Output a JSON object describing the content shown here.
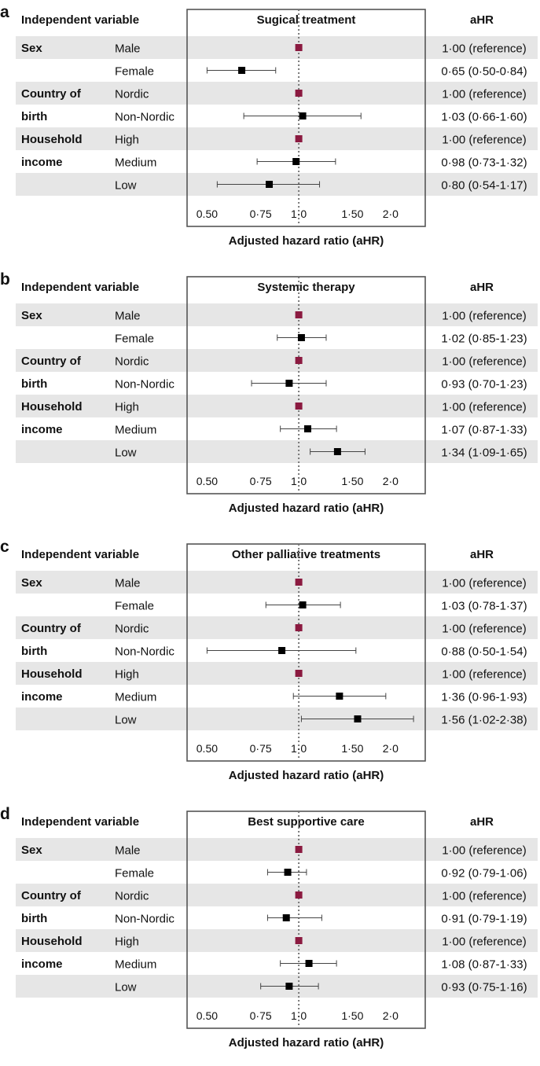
{
  "header": {
    "independent_label": "Independent variable",
    "ahr_label": "aHR",
    "xlabel": "Adjusted hazard ratio (aHR)"
  },
  "groups": [
    {
      "label_line1": "Sex",
      "label_line2": ""
    },
    {
      "label_line1": "Country of",
      "label_line2": "birth"
    },
    {
      "label_line1": "Household",
      "label_line2": "income"
    }
  ],
  "rows": [
    "Male",
    "Female",
    "Nordic",
    "Non-Nordic",
    "High",
    "Medium",
    "Low"
  ],
  "colors": {
    "reference_marker": "#8b1a40",
    "estimate_marker": "#000000",
    "row_band": "#e6e6e6",
    "ref_line": "#777777"
  },
  "chart_data": [
    {
      "type": "forest",
      "panel_letter": "a",
      "title": "Sugical treatment",
      "x_scale": "log",
      "xlim": [
        0.43,
        2.6
      ],
      "ticks": [
        {
          "value": 0.5,
          "label": "0.50"
        },
        {
          "value": 0.75,
          "label": "0·75"
        },
        {
          "value": 1.0,
          "label": "1·0"
        },
        {
          "value": 1.5,
          "label": "1·50"
        },
        {
          "value": 2.0,
          "label": "2·0"
        }
      ],
      "reference_line": 1.0,
      "points": [
        {
          "row": "Male",
          "hr": 1.0,
          "lo": null,
          "hi": null,
          "reference": true,
          "text": "1·00 (reference)"
        },
        {
          "row": "Female",
          "hr": 0.65,
          "lo": 0.5,
          "hi": 0.84,
          "reference": false,
          "text": "0·65 (0·50-0·84)"
        },
        {
          "row": "Nordic",
          "hr": 1.0,
          "lo": null,
          "hi": null,
          "reference": true,
          "text": "1·00 (reference)"
        },
        {
          "row": "Non-Nordic",
          "hr": 1.03,
          "lo": 0.66,
          "hi": 1.6,
          "reference": false,
          "text": "1·03 (0·66-1·60)"
        },
        {
          "row": "High",
          "hr": 1.0,
          "lo": null,
          "hi": null,
          "reference": true,
          "text": "1·00 (reference)"
        },
        {
          "row": "Medium",
          "hr": 0.98,
          "lo": 0.73,
          "hi": 1.32,
          "reference": false,
          "text": "0·98 (0·73-1·32)"
        },
        {
          "row": "Low",
          "hr": 0.8,
          "lo": 0.54,
          "hi": 1.17,
          "reference": false,
          "text": "0·80 (0·54-1·17)"
        }
      ]
    },
    {
      "type": "forest",
      "panel_letter": "b",
      "title": "Systemic therapy",
      "x_scale": "log",
      "xlim": [
        0.43,
        2.6
      ],
      "ticks": [
        {
          "value": 0.5,
          "label": "0.50"
        },
        {
          "value": 0.75,
          "label": "0·75"
        },
        {
          "value": 1.0,
          "label": "1·0"
        },
        {
          "value": 1.5,
          "label": "1·50"
        },
        {
          "value": 2.0,
          "label": "2·0"
        }
      ],
      "reference_line": 1.0,
      "points": [
        {
          "row": "Male",
          "hr": 1.0,
          "lo": null,
          "hi": null,
          "reference": true,
          "text": "1·00 (reference)"
        },
        {
          "row": "Female",
          "hr": 1.02,
          "lo": 0.85,
          "hi": 1.23,
          "reference": false,
          "text": "1·02 (0·85-1·23)"
        },
        {
          "row": "Nordic",
          "hr": 1.0,
          "lo": null,
          "hi": null,
          "reference": true,
          "text": "1·00 (reference)"
        },
        {
          "row": "Non-Nordic",
          "hr": 0.93,
          "lo": 0.7,
          "hi": 1.23,
          "reference": false,
          "text": "0·93 (0·70-1·23)"
        },
        {
          "row": "High",
          "hr": 1.0,
          "lo": null,
          "hi": null,
          "reference": true,
          "text": "1·00 (reference)"
        },
        {
          "row": "Medium",
          "hr": 1.07,
          "lo": 0.87,
          "hi": 1.33,
          "reference": false,
          "text": "1·07 (0·87-1·33)"
        },
        {
          "row": "Low",
          "hr": 1.34,
          "lo": 1.09,
          "hi": 1.65,
          "reference": false,
          "text": "1·34 (1·09-1·65)"
        }
      ]
    },
    {
      "type": "forest",
      "panel_letter": "c",
      "title": "Other palliative treatments",
      "x_scale": "log",
      "xlim": [
        0.43,
        2.6
      ],
      "ticks": [
        {
          "value": 0.5,
          "label": "0.50"
        },
        {
          "value": 0.75,
          "label": "0·75"
        },
        {
          "value": 1.0,
          "label": "1·0"
        },
        {
          "value": 1.5,
          "label": "1·50"
        },
        {
          "value": 2.0,
          "label": "2·0"
        }
      ],
      "reference_line": 1.0,
      "points": [
        {
          "row": "Male",
          "hr": 1.0,
          "lo": null,
          "hi": null,
          "reference": true,
          "text": "1·00 (reference)"
        },
        {
          "row": "Female",
          "hr": 1.03,
          "lo": 0.78,
          "hi": 1.37,
          "reference": false,
          "text": "1·03 (0·78-1·37)"
        },
        {
          "row": "Nordic",
          "hr": 1.0,
          "lo": null,
          "hi": null,
          "reference": true,
          "text": "1·00 (reference)"
        },
        {
          "row": "Non-Nordic",
          "hr": 0.88,
          "lo": 0.5,
          "hi": 1.54,
          "reference": false,
          "text": "0·88 (0·50-1·54)"
        },
        {
          "row": "High",
          "hr": 1.0,
          "lo": null,
          "hi": null,
          "reference": true,
          "text": "1·00 (reference)"
        },
        {
          "row": "Medium",
          "hr": 1.36,
          "lo": 0.96,
          "hi": 1.93,
          "reference": false,
          "text": "1·36 (0·96-1·93)"
        },
        {
          "row": "Low",
          "hr": 1.56,
          "lo": 1.02,
          "hi": 2.38,
          "reference": false,
          "text": "1·56 (1·02-2·38)"
        }
      ]
    },
    {
      "type": "forest",
      "panel_letter": "d",
      "title": "Best supportive care",
      "x_scale": "log",
      "xlim": [
        0.43,
        2.6
      ],
      "ticks": [
        {
          "value": 0.5,
          "label": "0.50"
        },
        {
          "value": 0.75,
          "label": "0·75"
        },
        {
          "value": 1.0,
          "label": "1·0"
        },
        {
          "value": 1.5,
          "label": "1·50"
        },
        {
          "value": 2.0,
          "label": "2·0"
        }
      ],
      "reference_line": 1.0,
      "points": [
        {
          "row": "Male",
          "hr": 1.0,
          "lo": null,
          "hi": null,
          "reference": true,
          "text": "1·00 (reference)"
        },
        {
          "row": "Female",
          "hr": 0.92,
          "lo": 0.79,
          "hi": 1.06,
          "reference": false,
          "text": "0·92 (0·79-1·06)"
        },
        {
          "row": "Nordic",
          "hr": 1.0,
          "lo": null,
          "hi": null,
          "reference": true,
          "text": "1·00 (reference)"
        },
        {
          "row": "Non-Nordic",
          "hr": 0.91,
          "lo": 0.79,
          "hi": 1.19,
          "reference": false,
          "text": "0·91 (0·79-1·19)"
        },
        {
          "row": "High",
          "hr": 1.0,
          "lo": null,
          "hi": null,
          "reference": true,
          "text": "1·00 (reference)"
        },
        {
          "row": "Medium",
          "hr": 1.08,
          "lo": 0.87,
          "hi": 1.33,
          "reference": false,
          "text": "1·08 (0·87-1·33)"
        },
        {
          "row": "Low",
          "hr": 0.93,
          "lo": 0.75,
          "hi": 1.16,
          "reference": false,
          "text": "0·93 (0·75-1·16)"
        }
      ]
    }
  ]
}
